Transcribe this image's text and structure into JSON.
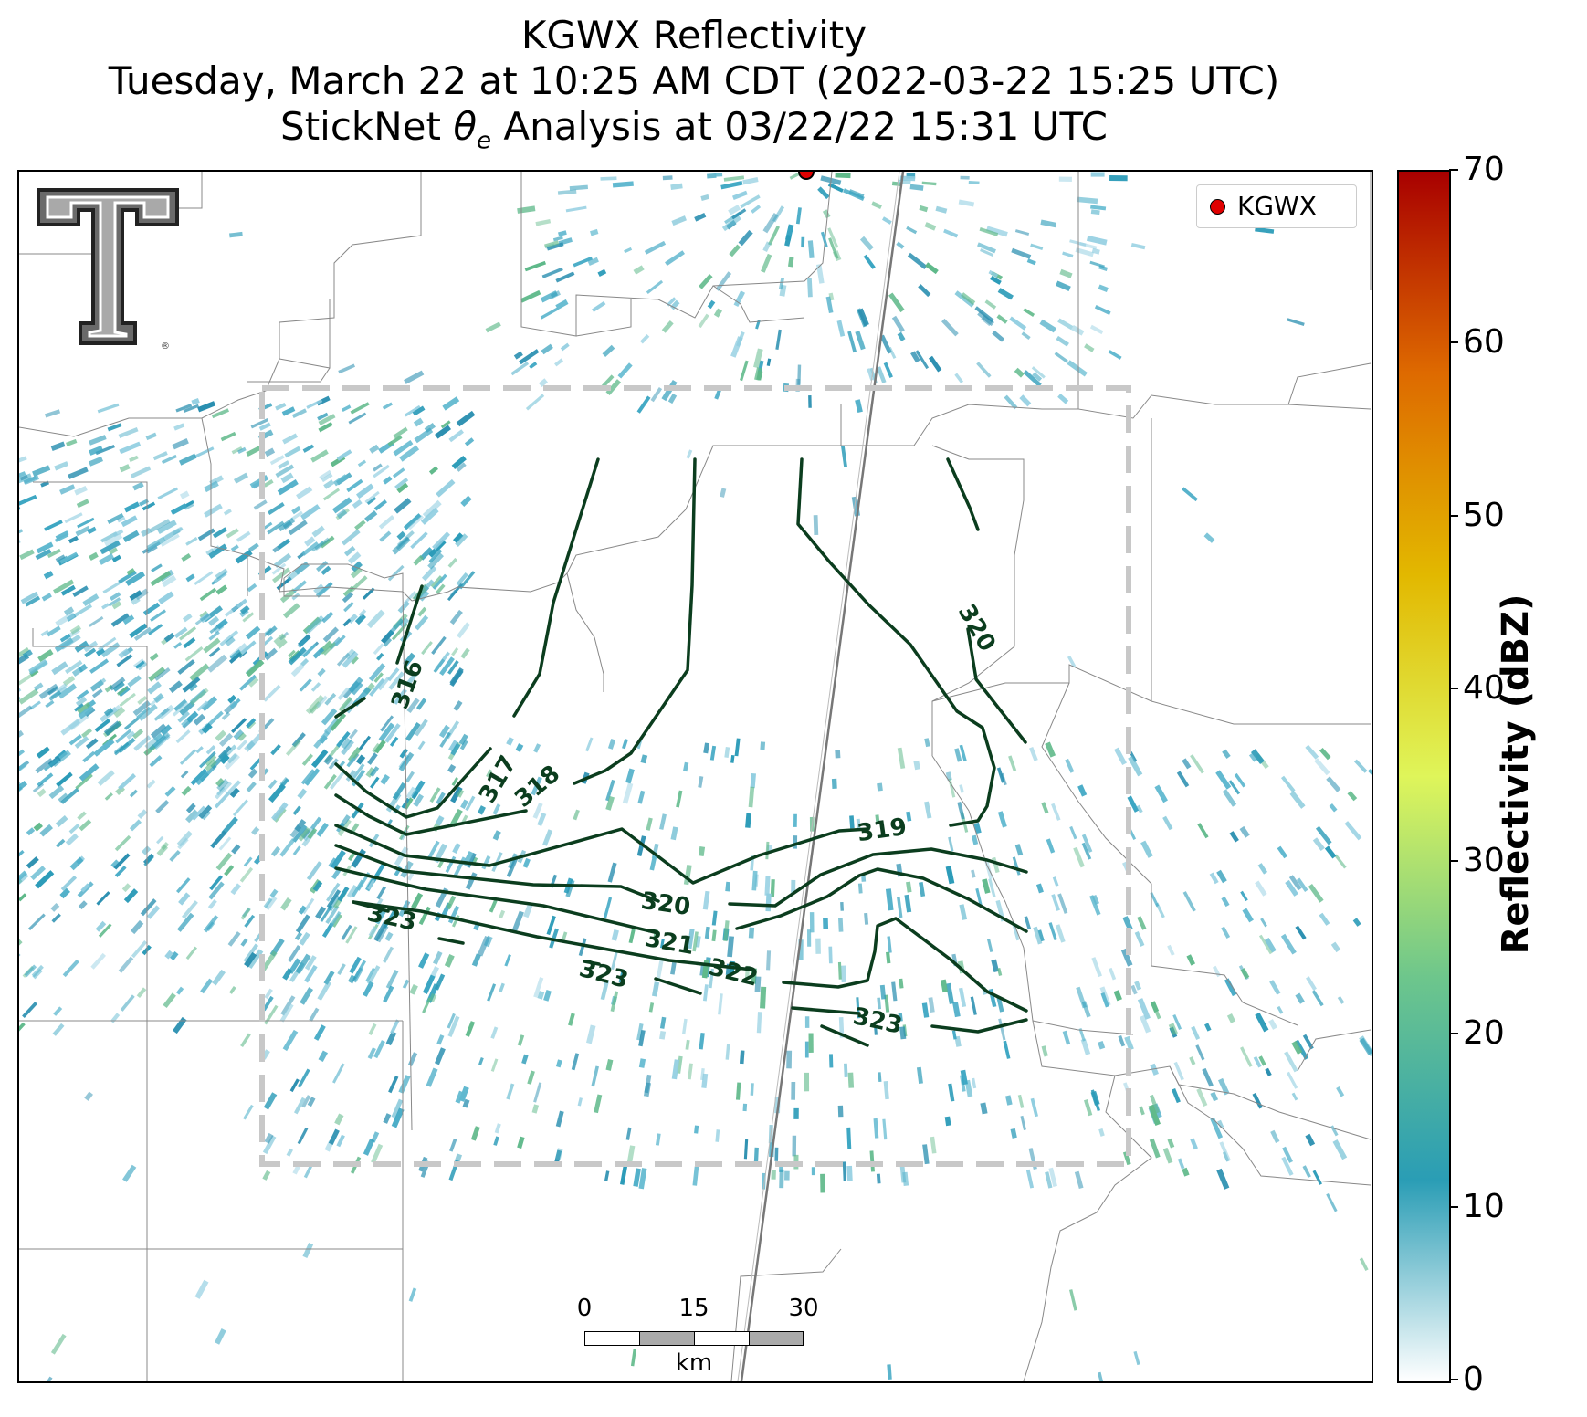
{
  "title": {
    "line1": "KGWX Reflectivity",
    "line2": "Tuesday, March 22 at 10:25 AM CDT (2022-03-22 15:25 UTC)",
    "line3_prefix": "StickNet ",
    "line3_symbol": "θ",
    "line3_subscript": "e",
    "line3_suffix": " Analysis at 03/22/22 15:31 UTC"
  },
  "legend": {
    "label": "KGWX",
    "marker_color": "#e00000"
  },
  "colorbar": {
    "title": "Reflectivity (dBZ)",
    "range": [
      0,
      70
    ],
    "ticks": [
      "0",
      "10",
      "20",
      "30",
      "40",
      "50",
      "60",
      "70"
    ],
    "stops": [
      "#ffffff",
      "#2a9db5",
      "#6dc68c",
      "#dff55a",
      "#e2b800",
      "#de6a00",
      "#a80000"
    ]
  },
  "scalebar": {
    "ticks": [
      "0",
      "15",
      "30"
    ],
    "unit": "km"
  },
  "contours": {
    "variable": "θe",
    "color": "#0b3d1e",
    "labels": [
      "316",
      "317",
      "318",
      "319",
      "320",
      "320",
      "321",
      "322",
      "323",
      "323",
      "323"
    ]
  },
  "logo": {
    "text": "TT",
    "mark": "®"
  },
  "radar": {
    "site": "KGWX",
    "echo_color": "#2b9bb8"
  }
}
